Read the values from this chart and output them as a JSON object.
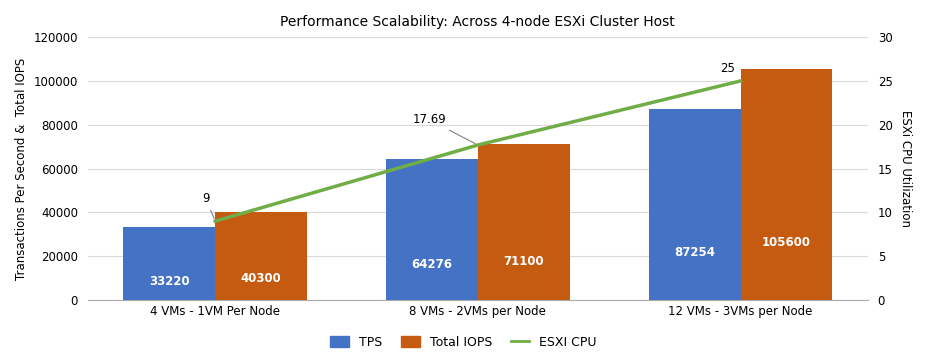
{
  "title": "Performance Scalability: Across 4-node ESXi Cluster Host",
  "categories": [
    "4 VMs - 1VM Per Node",
    "8 VMs - 2VMs per Node",
    "12 VMs - 3VMs per Node"
  ],
  "tps_values": [
    33220,
    64276,
    87254
  ],
  "iops_values": [
    40300,
    71100,
    105600
  ],
  "cpu_values": [
    9,
    17.69,
    25
  ],
  "tps_color": "#4472C4",
  "iops_color": "#C55A11",
  "cpu_color": "#70AD47",
  "ylabel_left": "Transactions Per Second &  Total IOPS",
  "ylabel_right": "ESXi CPU Utilization",
  "ylim_left": [
    0,
    120000
  ],
  "ylim_right": [
    0,
    30
  ],
  "yticks_left": [
    0,
    20000,
    40000,
    60000,
    80000,
    100000,
    120000
  ],
  "yticks_right": [
    0,
    5,
    10,
    15,
    20,
    25,
    30
  ],
  "bar_width": 0.35,
  "legend_labels": [
    "TPS",
    "Total IOPS",
    "ESXI CPU"
  ],
  "tps_labels": [
    "33220",
    "64276",
    "87254"
  ],
  "iops_labels": [
    "40300",
    "71100",
    "105600"
  ],
  "cpu_labels": [
    "9",
    "17.69",
    "25"
  ],
  "background_color": "#FFFFFF",
  "grid_color": "#D9D9D9",
  "title_fontsize": 10,
  "label_fontsize": 8.5,
  "tick_fontsize": 8.5,
  "bar_label_fontsize": 8.5
}
